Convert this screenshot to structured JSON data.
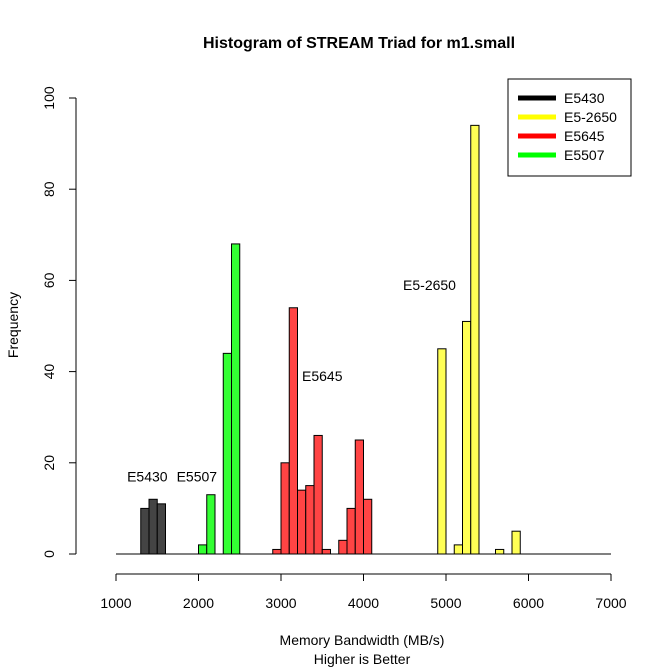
{
  "chart_data": {
    "type": "bar",
    "title": "Histogram of STREAM Triad for m1.small",
    "xlabel": "Memory Bandwidth (MB/s)",
    "xlabel2": "Higher is Better",
    "ylabel": "Frequency",
    "xlim": [
      1000,
      7000
    ],
    "ylim": [
      0,
      100
    ],
    "xticks": [
      1000,
      2000,
      3000,
      4000,
      5000,
      6000,
      7000
    ],
    "yticks": [
      0,
      20,
      40,
      60,
      80,
      100
    ],
    "bin_width": 100,
    "baseline": [
      1000,
      7000
    ],
    "legend_position": "top-right",
    "series": [
      {
        "name": "E5430",
        "color": "#444444",
        "annotation": {
          "text": "E5430",
          "x": 1380,
          "y": 17
        },
        "bins": [
          {
            "from": 1300,
            "to": 1400,
            "value": 10
          },
          {
            "from": 1400,
            "to": 1500,
            "value": 12
          },
          {
            "from": 1500,
            "to": 1600,
            "value": 11
          }
        ]
      },
      {
        "name": "E5-2650",
        "color": "#FFFF55",
        "annotation": {
          "text": "E5-2650",
          "x": 4800,
          "y": 59
        },
        "bins": [
          {
            "from": 4900,
            "to": 5000,
            "value": 45
          },
          {
            "from": 5100,
            "to": 5200,
            "value": 2
          },
          {
            "from": 5200,
            "to": 5300,
            "value": 51
          },
          {
            "from": 5300,
            "to": 5400,
            "value": 94
          },
          {
            "from": 5600,
            "to": 5700,
            "value": 1
          },
          {
            "from": 5800,
            "to": 5900,
            "value": 5
          }
        ]
      },
      {
        "name": "E5645",
        "color": "#FF4444",
        "annotation": {
          "text": "E5645",
          "x": 3500,
          "y": 39
        },
        "bins": [
          {
            "from": 2900,
            "to": 3000,
            "value": 1
          },
          {
            "from": 3000,
            "to": 3100,
            "value": 20
          },
          {
            "from": 3100,
            "to": 3200,
            "value": 54
          },
          {
            "from": 3200,
            "to": 3300,
            "value": 14
          },
          {
            "from": 3300,
            "to": 3400,
            "value": 15
          },
          {
            "from": 3400,
            "to": 3500,
            "value": 26
          },
          {
            "from": 3500,
            "to": 3600,
            "value": 1
          },
          {
            "from": 3700,
            "to": 3800,
            "value": 3
          },
          {
            "from": 3800,
            "to": 3900,
            "value": 10
          },
          {
            "from": 3900,
            "to": 4000,
            "value": 25
          },
          {
            "from": 4000,
            "to": 4100,
            "value": 12
          }
        ]
      },
      {
        "name": "E5507",
        "color": "#33FF33",
        "annotation": {
          "text": "E5507",
          "x": 1980,
          "y": 17
        },
        "bins": [
          {
            "from": 2000,
            "to": 2100,
            "value": 2
          },
          {
            "from": 2100,
            "to": 2200,
            "value": 13
          },
          {
            "from": 2300,
            "to": 2400,
            "value": 44
          },
          {
            "from": 2400,
            "to": 2500,
            "value": 68
          }
        ]
      }
    ],
    "legend": [
      {
        "label": "E5430",
        "color": "#000000"
      },
      {
        "label": "E5-2650",
        "color": "#FFFF00"
      },
      {
        "label": "E5645",
        "color": "#FF0000"
      },
      {
        "label": "E5507",
        "color": "#00FF00"
      }
    ]
  }
}
